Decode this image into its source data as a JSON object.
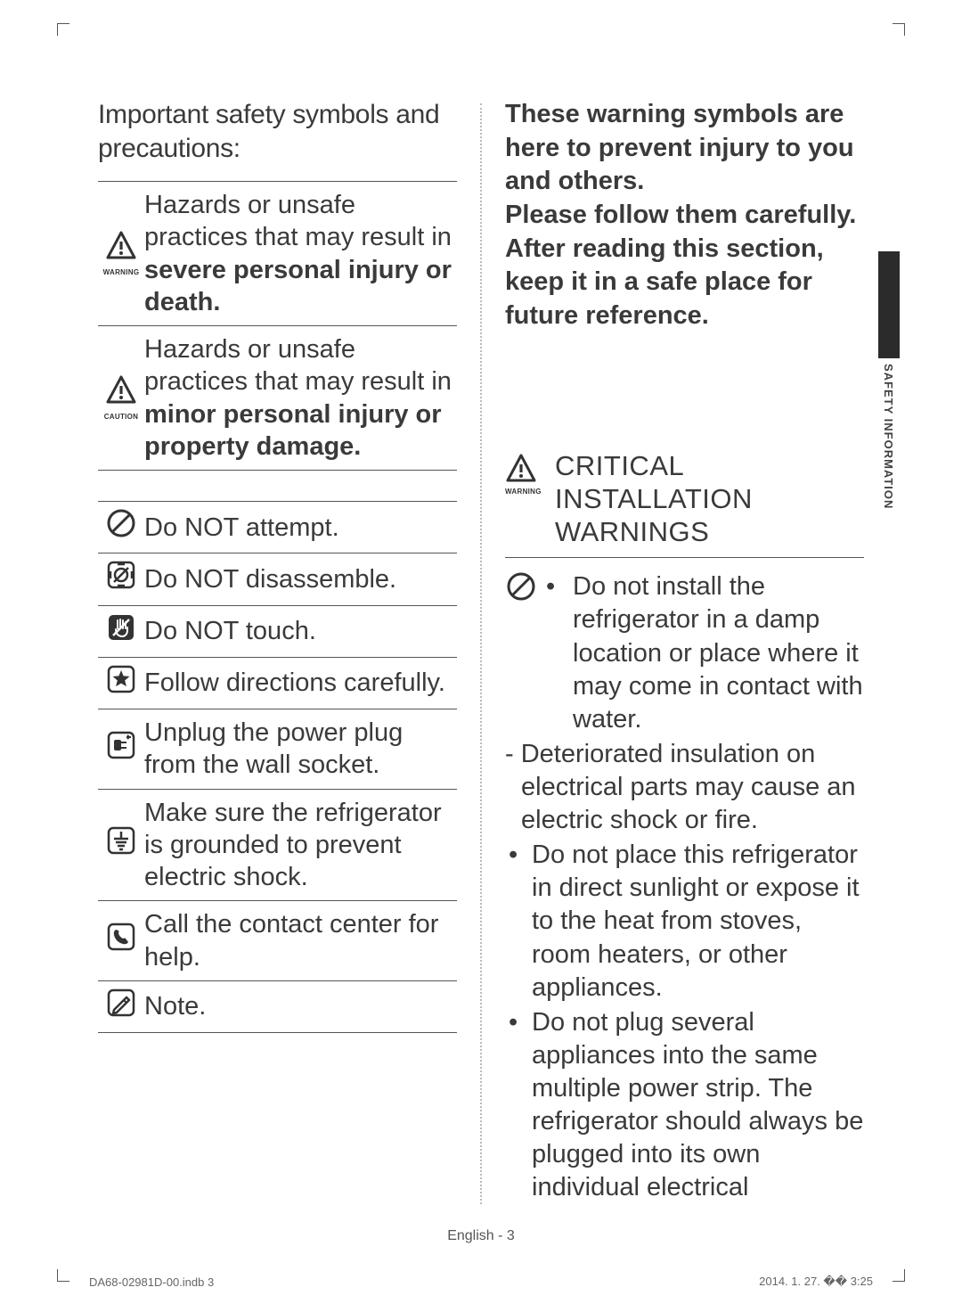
{
  "left": {
    "heading": "Important safety symbols and precautions:",
    "table1": [
      {
        "icon": "warning",
        "label": "WARNING",
        "pre": "Hazards or unsafe practices that may result in ",
        "bold": "severe personal injury or death."
      },
      {
        "icon": "warning",
        "label": "CAUTION",
        "pre": "Hazards or unsafe practices that may result in ",
        "bold": "minor personal injury or property damage."
      }
    ],
    "table2": [
      {
        "icon": "prohibit",
        "text": "Do NOT attempt."
      },
      {
        "icon": "disassemble",
        "text": "Do NOT disassemble."
      },
      {
        "icon": "notouch",
        "text": "Do NOT touch."
      },
      {
        "icon": "star",
        "text": "Follow directions carefully."
      },
      {
        "icon": "unplug",
        "text": "Unplug the power plug from the wall socket."
      },
      {
        "icon": "ground",
        "text": "Make sure the refrigerator is grounded to prevent electric shock."
      },
      {
        "icon": "phone",
        "text": "Call the contact center for help."
      },
      {
        "icon": "note",
        "text": "Note."
      }
    ]
  },
  "right": {
    "intro": "These warning symbols are here to prevent injury to you and others.\nPlease follow them carefully. After reading this section, keep it in a safe place for future reference.",
    "heading_label": "WARNING",
    "heading": "CRITICAL INSTALLATION WARNINGS",
    "first_bullet": "Do not install the refrigerator in a damp location or place where it may come in contact with water.",
    "dash": "Deteriorated insulation on electrical parts may cause an electric shock or fire.",
    "bullets": [
      "Do not place this refrigerator in direct sunlight or expose it to the heat from stoves, room heaters, or other appliances.",
      "Do not plug several appliances into the same multiple power strip. The refrigerator should always be plugged into its own individual electrical"
    ]
  },
  "side_tab": "SAFETY INFORMATION",
  "footer": {
    "page": "English - 3",
    "left": "DA68-02981D-00.indb   3",
    "right": "2014. 1. 27.   �� 3:25"
  },
  "colors": {
    "text": "#3a3a3a",
    "rule": "#555555",
    "dot_divider": "#bbbbbb",
    "tab_dark": "#2b2b2b",
    "background": "#ffffff"
  }
}
